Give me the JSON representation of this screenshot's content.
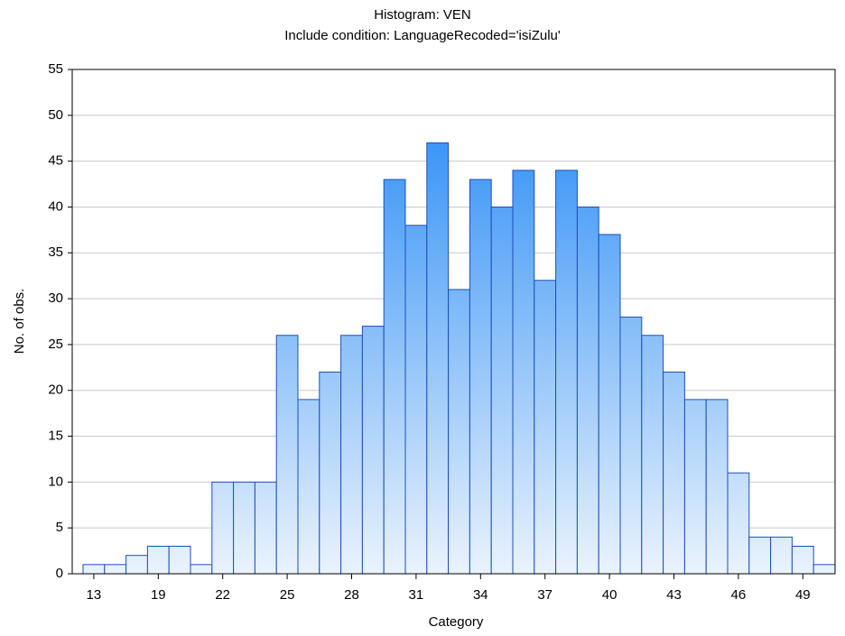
{
  "chart_data": {
    "type": "bar",
    "title": "Histogram: VEN",
    "subtitle": "Include condition: LanguageRecoded='isiZulu'",
    "x_label": "Category",
    "y_label": "No. of obs.",
    "categories": [
      "13",
      null,
      null,
      "19",
      null,
      null,
      "22",
      null,
      null,
      "25",
      null,
      null,
      "28",
      null,
      null,
      "31",
      null,
      null,
      "34",
      null,
      null,
      "37",
      null,
      null,
      "40",
      null,
      null,
      "43",
      null,
      null,
      "46",
      null,
      null,
      "49",
      null
    ],
    "values": [
      1,
      1,
      2,
      3,
      3,
      1,
      10,
      10,
      10,
      26,
      19,
      22,
      26,
      27,
      43,
      38,
      47,
      31,
      43,
      40,
      44,
      32,
      44,
      40,
      37,
      28,
      26,
      22,
      19,
      19,
      11,
      4,
      4,
      3,
      1
    ],
    "color": "#1f86f5",
    "ylim": [
      0,
      55
    ],
    "yticks": [
      0,
      5,
      10,
      15,
      20,
      25,
      30,
      35,
      40,
      45,
      50,
      55
    ],
    "grid": true
  }
}
